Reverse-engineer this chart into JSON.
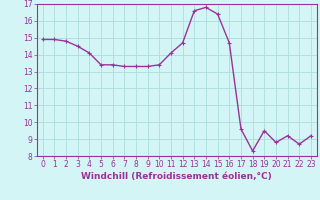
{
  "x": [
    0,
    1,
    2,
    3,
    4,
    5,
    6,
    7,
    8,
    9,
    10,
    11,
    12,
    13,
    14,
    15,
    16,
    17,
    18,
    19,
    20,
    21,
    22,
    23
  ],
  "y": [
    14.9,
    14.9,
    14.8,
    14.5,
    14.1,
    13.4,
    13.4,
    13.3,
    13.3,
    13.3,
    13.4,
    14.1,
    14.7,
    16.6,
    16.8,
    16.4,
    14.7,
    9.6,
    8.3,
    9.5,
    8.8,
    9.2,
    8.7,
    9.2
  ],
  "line_color": "#993399",
  "marker": "+",
  "bg_color": "#d4f5f5",
  "grid_color": "#aadddd",
  "axis_color": "#993399",
  "xlabel": "Windchill (Refroidissement éolien,°C)",
  "ylim": [
    8,
    17
  ],
  "xlim": [
    -0.5,
    23.5
  ],
  "yticks": [
    8,
    9,
    10,
    11,
    12,
    13,
    14,
    15,
    16,
    17
  ],
  "xticks": [
    0,
    1,
    2,
    3,
    4,
    5,
    6,
    7,
    8,
    9,
    10,
    11,
    12,
    13,
    14,
    15,
    16,
    17,
    18,
    19,
    20,
    21,
    22,
    23
  ],
  "tick_fontsize": 5.5,
  "label_fontsize": 6.5,
  "marker_size": 3,
  "linewidth": 1.0
}
